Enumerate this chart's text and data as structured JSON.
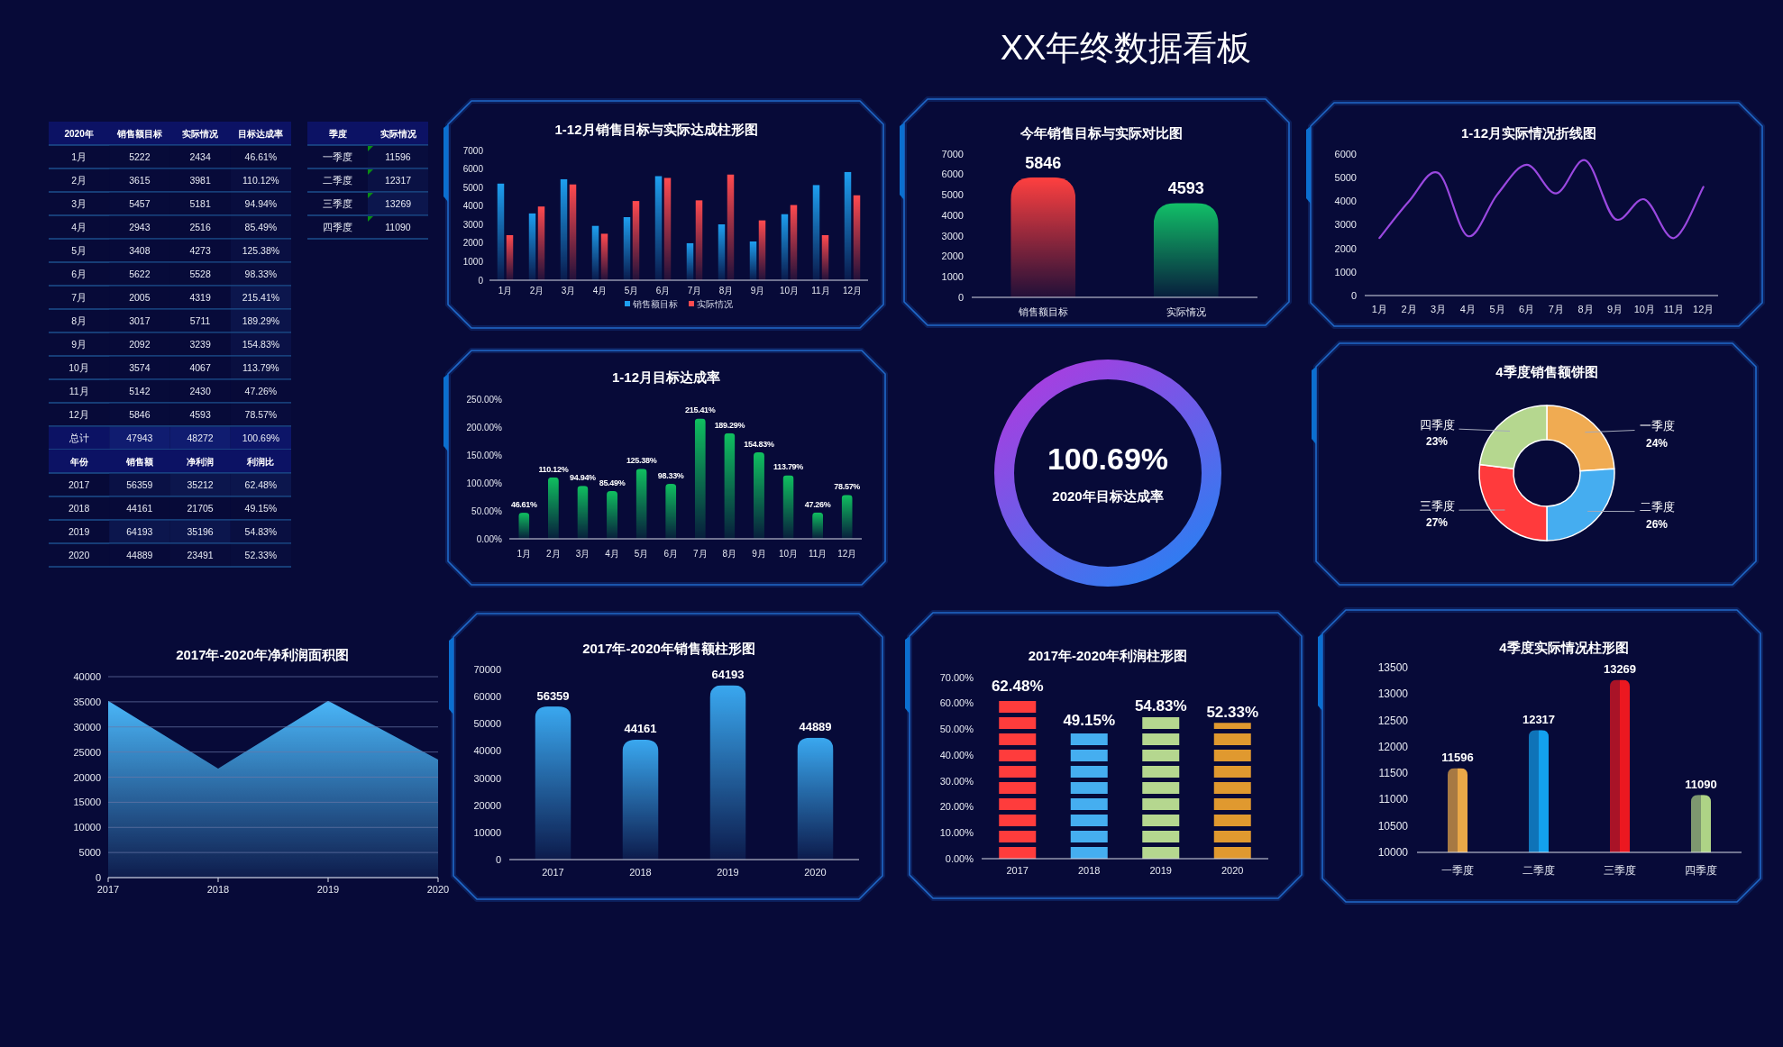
{
  "chart_data": [
    {
      "type": "other",
      "title": "XX年终数据看板"
    },
    {
      "type": "heatmap",
      "ylabel": "2020年",
      "categories": [
        "销售额目标",
        "实际情况",
        "目标达成率"
      ],
      "y_categories": [
        "1月",
        "2月",
        "3月",
        "4月",
        "5月",
        "6月",
        "7月",
        "8月",
        "9月",
        "10月",
        "11月",
        "12月",
        "总计"
      ],
      "cells": [
        [
          5222,
          2434,
          46.61
        ],
        [
          3615,
          3981,
          110.12
        ],
        [
          5457,
          5181,
          94.94
        ],
        [
          2943,
          2516,
          85.49
        ],
        [
          3408,
          4273,
          125.38
        ],
        [
          5622,
          5528,
          98.33
        ],
        [
          2005,
          4319,
          215.41
        ],
        [
          3017,
          5711,
          189.29
        ],
        [
          2092,
          3239,
          154.83
        ],
        [
          3574,
          4067,
          113.79
        ],
        [
          5142,
          2430,
          47.26
        ],
        [
          5846,
          4593,
          78.57
        ],
        [
          47943,
          48272,
          100.69
        ]
      ],
      "cell_labels": [
        [
          "5222",
          "2434",
          "46.61%"
        ],
        [
          "3615",
          "3981",
          "110.12%"
        ],
        [
          "5457",
          "5181",
          "94.94%"
        ],
        [
          "2943",
          "2516",
          "85.49%"
        ],
        [
          "3408",
          "4273",
          "125.38%"
        ],
        [
          "5622",
          "5528",
          "98.33%"
        ],
        [
          "2005",
          "4319",
          "215.41%"
        ],
        [
          "3017",
          "5711",
          "189.29%"
        ],
        [
          "2092",
          "3239",
          "154.83%"
        ],
        [
          "3574",
          "4067",
          "113.79%"
        ],
        [
          "5142",
          "2430",
          "47.26%"
        ],
        [
          "5846",
          "4593",
          "78.57%"
        ],
        [
          "47943",
          "48272",
          "100.69%"
        ]
      ]
    },
    {
      "type": "heatmap",
      "ylabel": "年份",
      "categories": [
        "销售额",
        "净利润",
        "利润比"
      ],
      "y_categories": [
        "2017",
        "2018",
        "2019",
        "2020"
      ],
      "cells": [
        [
          56359,
          35212,
          62.48
        ],
        [
          44161,
          21705,
          49.15
        ],
        [
          64193,
          35196,
          54.83
        ],
        [
          44889,
          23491,
          52.33
        ]
      ],
      "cell_labels": [
        [
          "56359",
          "35212",
          "62.48%"
        ],
        [
          "44161",
          "21705",
          "49.15%"
        ],
        [
          "64193",
          "35196",
          "54.83%"
        ],
        [
          "44889",
          "23491",
          "52.33%"
        ]
      ]
    },
    {
      "type": "heatmap",
      "ylabel": "季度",
      "categories": [
        "实际情况"
      ],
      "y_categories": [
        "一季度",
        "二季度",
        "三季度",
        "四季度"
      ],
      "cells": [
        [
          11596
        ],
        [
          12317
        ],
        [
          13269
        ],
        [
          11090
        ]
      ],
      "cell_labels": [
        [
          "11596"
        ],
        [
          "12317"
        ],
        [
          "13269"
        ],
        [
          "11090"
        ]
      ]
    },
    {
      "type": "bar",
      "title": "1-12月销售目标与实际达成柱形图",
      "categories": [
        "1月",
        "2月",
        "3月",
        "4月",
        "5月",
        "6月",
        "7月",
        "8月",
        "9月",
        "10月",
        "11月",
        "12月"
      ],
      "series": [
        {
          "name": "销售额目标",
          "color": "#1e9ff0",
          "values": [
            5222,
            3615,
            5457,
            2943,
            3408,
            5622,
            2005,
            3017,
            2092,
            3574,
            5142,
            5846
          ]
        },
        {
          "name": "实际情况",
          "color": "#ff4a4f",
          "values": [
            2434,
            3981,
            5181,
            2516,
            4273,
            5528,
            4319,
            5711,
            3239,
            4067,
            2430,
            4593
          ]
        }
      ],
      "ylim": [
        0,
        7000
      ],
      "yticks": [
        0,
        1000,
        2000,
        3000,
        4000,
        5000,
        6000,
        7000
      ],
      "legend": "bottom"
    },
    {
      "type": "bar",
      "title": "今年销售目标与实际对比图",
      "categories": [
        "销售额目标",
        "实际情况"
      ],
      "values": [
        5846,
        4593
      ],
      "colors": [
        "#ff4040",
        "#12c068"
      ],
      "ylim": [
        0,
        7000
      ],
      "yticks": [
        0,
        1000,
        2000,
        3000,
        4000,
        5000,
        6000,
        7000
      ],
      "data_labels": true
    },
    {
      "type": "line",
      "title": "1-12月实际情况折线图",
      "categories": [
        "1月",
        "2月",
        "3月",
        "4月",
        "5月",
        "6月",
        "7月",
        "8月",
        "9月",
        "10月",
        "11月",
        "12月"
      ],
      "values": [
        2434,
        3981,
        5181,
        2516,
        4273,
        5528,
        4319,
        5711,
        3239,
        4067,
        2430,
        4593
      ],
      "color": "#9a48e0",
      "ylim": [
        0,
        6000
      ],
      "yticks": [
        0,
        1000,
        2000,
        3000,
        4000,
        5000,
        6000
      ]
    },
    {
      "type": "bar",
      "title": "1-12月目标达成率",
      "categories": [
        "1月",
        "2月",
        "3月",
        "4月",
        "5月",
        "6月",
        "7月",
        "8月",
        "9月",
        "10月",
        "11月",
        "12月"
      ],
      "values": [
        46.61,
        110.12,
        94.94,
        85.49,
        125.38,
        98.33,
        215.41,
        189.29,
        154.83,
        113.79,
        47.26,
        78.57
      ],
      "value_labels": [
        "46.61%",
        "110.12%",
        "94.94%",
        "85.49%",
        "125.38%",
        "98.33%",
        "215.41%",
        "189.29%",
        "154.83%",
        "113.79%",
        "47.26%",
        "78.57%"
      ],
      "color": "#10c060",
      "ylim": [
        0,
        250
      ],
      "yticks": [
        {
          "value": 0,
          "label": "0.00%"
        },
        {
          "value": 50,
          "label": "50.00%"
        },
        {
          "value": 100,
          "label": "100.00%"
        },
        {
          "value": 150,
          "label": "150.00%"
        },
        {
          "value": 200,
          "label": "200.00%"
        },
        {
          "value": 250,
          "label": "250.00%"
        }
      ]
    },
    {
      "type": "other",
      "annotations": [
        "100.69%",
        "2020年目标达成率"
      ]
    },
    {
      "type": "donut",
      "title": "4季度销售额饼图",
      "categories": [
        "一季度",
        "二季度",
        "三季度",
        "四季度"
      ],
      "values": [
        24,
        26,
        27,
        23
      ],
      "colors": [
        "#f0ab52",
        "#45adf0",
        "#ff3a3c",
        "#b5d78f"
      ],
      "value_labels": [
        "24%",
        "26%",
        "27%",
        "23%"
      ]
    },
    {
      "type": "area",
      "title": "2017年-2020年净利润面积图",
      "categories": [
        "2017",
        "2018",
        "2019",
        "2020"
      ],
      "values": [
        35212,
        21705,
        35196,
        23491
      ],
      "color": "#4ab6f8",
      "ylim": [
        0,
        40000
      ],
      "yticks": [
        0,
        5000,
        10000,
        15000,
        20000,
        25000,
        30000,
        35000,
        40000
      ],
      "grid": "y"
    },
    {
      "type": "bar",
      "title": "2017年-2020年销售额柱形图",
      "categories": [
        "2017",
        "2018",
        "2019",
        "2020"
      ],
      "values": [
        56359,
        44161,
        64193,
        44889
      ],
      "color": "#3aa8f0",
      "ylim": [
        0,
        70000
      ],
      "yticks": [
        0,
        10000,
        20000,
        30000,
        40000,
        50000,
        60000,
        70000
      ],
      "data_labels": true
    },
    {
      "type": "bar",
      "title": "2017年-2020年利润柱形图",
      "categories": [
        "2017",
        "2018",
        "2019",
        "2020"
      ],
      "values": [
        62.48,
        49.15,
        54.83,
        52.33
      ],
      "value_labels": [
        "62.48%",
        "49.15%",
        "54.83%",
        "52.33%"
      ],
      "colors": [
        "#ff3c3c",
        "#45aef0",
        "#b5d78f",
        "#e0992f"
      ],
      "ylim": [
        0,
        70
      ],
      "yticks": [
        {
          "value": 0,
          "label": "0.00%"
        },
        {
          "value": 10,
          "label": "10.00%"
        },
        {
          "value": 20,
          "label": "20.00%"
        },
        {
          "value": 30,
          "label": "30.00%"
        },
        {
          "value": 40,
          "label": "40.00%"
        },
        {
          "value": 50,
          "label": "50.00%"
        },
        {
          "value": 60,
          "label": "60.00%"
        },
        {
          "value": 70,
          "label": "70.00%"
        }
      ]
    },
    {
      "type": "bar",
      "title": "4季度实际情况柱形图",
      "categories": [
        "一季度",
        "二季度",
        "三季度",
        "四季度"
      ],
      "values": [
        11596,
        12317,
        13269,
        11090
      ],
      "colors": [
        "#eaa848",
        "#13a0ee",
        "#ec1820",
        "#aed386"
      ],
      "ylim": [
        10000,
        13500
      ],
      "yticks": [
        10000,
        10500,
        11000,
        11500,
        12000,
        12500,
        13000,
        13500
      ],
      "data_labels": true
    }
  ]
}
